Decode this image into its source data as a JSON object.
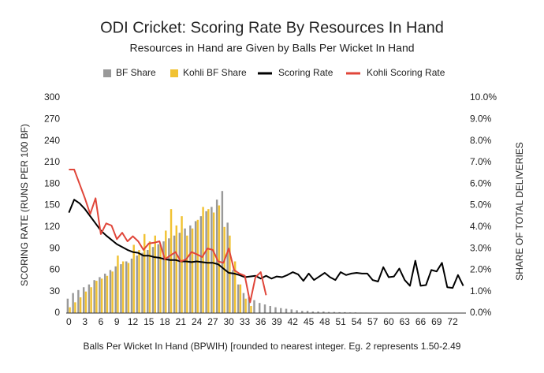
{
  "chart_data": {
    "type": "bar-line",
    "title": "ODI Cricket: Scoring Rate By Resources In Hand",
    "subtitle": "Resources in Hand are Given by Balls Per Wicket In Hand",
    "x_label": "Balls Per Wicket In Hand (BPWIH) [rounded to nearest integer. Eg. 2 represents 1.50-2.49",
    "y_label": "SCORING RATE (RUNS PER 100 BF)",
    "y2_label": "SHARE OF TOTAL DELIVERIES",
    "x": [
      0,
      1,
      2,
      3,
      4,
      5,
      6,
      7,
      8,
      9,
      10,
      11,
      12,
      13,
      14,
      15,
      16,
      17,
      18,
      19,
      20,
      21,
      22,
      23,
      24,
      25,
      26,
      27,
      28,
      29,
      30,
      31,
      32,
      33,
      34,
      35,
      36,
      37,
      38,
      39,
      40,
      41,
      42,
      43,
      44,
      45,
      46,
      47,
      48,
      49,
      50,
      51,
      52,
      53,
      54,
      55,
      56,
      57,
      58,
      59,
      60,
      61,
      62,
      63,
      64,
      65,
      66,
      67,
      68,
      69,
      70,
      71,
      72,
      73,
      74
    ],
    "xlim": [
      -0.5,
      74.5
    ],
    "xticks": [
      0,
      3,
      6,
      9,
      12,
      15,
      18,
      21,
      24,
      27,
      30,
      33,
      36,
      39,
      42,
      45,
      48,
      51,
      54,
      57,
      60,
      63,
      66,
      69,
      72
    ],
    "ylim": [
      0,
      300
    ],
    "yticks": [
      0,
      30,
      60,
      90,
      120,
      150,
      180,
      210,
      240,
      270,
      300
    ],
    "y2lim": [
      0,
      10
    ],
    "y2ticks": [
      {
        "value": 0,
        "label": "0.0%"
      },
      {
        "value": 1,
        "label": "1.0%"
      },
      {
        "value": 2,
        "label": "2.0%"
      },
      {
        "value": 3,
        "label": "3.0%"
      },
      {
        "value": 4,
        "label": "4.0%"
      },
      {
        "value": 5,
        "label": "5.0%"
      },
      {
        "value": 6,
        "label": "6.0%"
      },
      {
        "value": 7,
        "label": "7.0%"
      },
      {
        "value": 8,
        "label": "8.0%"
      },
      {
        "value": 9,
        "label": "9.0%"
      },
      {
        "value": 10,
        "label": "10.0%"
      }
    ],
    "grid": false,
    "legend": "top",
    "series": [
      {
        "name": "BF Share",
        "kind": "bar",
        "axis": "y2",
        "color": "#999999",
        "values": [
          0.67,
          0.93,
          1.07,
          1.2,
          1.33,
          1.53,
          1.67,
          1.83,
          2.0,
          2.17,
          2.27,
          2.4,
          2.53,
          2.67,
          2.8,
          2.93,
          3.07,
          3.2,
          3.33,
          3.47,
          3.6,
          3.73,
          3.93,
          4.07,
          4.27,
          4.5,
          4.73,
          4.93,
          5.27,
          5.67,
          4.2,
          2.0,
          1.33,
          0.93,
          0.73,
          0.6,
          0.47,
          0.4,
          0.33,
          0.27,
          0.23,
          0.2,
          0.17,
          0.13,
          0.1,
          0.1,
          0.07,
          0.07,
          0.07,
          0.05,
          0.05,
          0.04,
          0.04,
          0.03,
          0.03,
          0.02,
          0.02,
          0.02,
          null,
          null,
          null,
          null,
          null,
          null,
          null,
          null,
          null,
          null,
          null,
          null,
          null,
          null,
          null,
          null,
          null
        ]
      },
      {
        "name": "Kohli BF Share",
        "kind": "bar",
        "axis": "y2",
        "color": "#f1c232",
        "values": [
          0.27,
          0.5,
          0.73,
          1.0,
          1.2,
          1.5,
          1.6,
          1.73,
          1.93,
          2.67,
          2.4,
          2.33,
          3.17,
          2.93,
          3.67,
          3.33,
          3.6,
          3.17,
          3.83,
          4.83,
          4.07,
          4.5,
          3.6,
          3.93,
          4.33,
          4.93,
          4.83,
          4.67,
          5.0,
          4.0,
          3.6,
          2.4,
          1.33,
          0.67,
          0.33,
          null,
          null,
          null,
          null,
          null,
          null,
          null,
          null,
          null,
          null,
          null,
          null,
          null,
          null,
          null,
          null,
          null,
          null,
          null,
          null,
          null,
          null,
          null,
          null,
          null,
          null,
          null,
          null,
          null,
          null,
          null,
          null,
          null,
          null,
          null,
          null,
          null,
          null,
          null,
          null
        ]
      },
      {
        "name": "Scoring Rate",
        "kind": "line",
        "axis": "y",
        "color": "#000000",
        "values": [
          140,
          158,
          153,
          145,
          135,
          125,
          115,
          108,
          102,
          96,
          92,
          88,
          85,
          84,
          80,
          80,
          78,
          77,
          75,
          74,
          74,
          72,
          72,
          71,
          72,
          71,
          70,
          70,
          68,
          62,
          56,
          55,
          53,
          50,
          51,
          52,
          48,
          52,
          48,
          51,
          50,
          53,
          57,
          54,
          45,
          55,
          46,
          51,
          56,
          50,
          46,
          57,
          53,
          55,
          56,
          55,
          55,
          46,
          44,
          64,
          50,
          51,
          62,
          46,
          38,
          73,
          38,
          39,
          60,
          58,
          70,
          36,
          35,
          53,
          38
        ]
      },
      {
        "name": "Kohli Scoring Rate",
        "kind": "line",
        "axis": "y",
        "color": "#e0463a",
        "values": [
          200,
          200,
          180,
          160,
          138,
          160,
          110,
          125,
          122,
          103,
          112,
          100,
          107,
          100,
          88,
          97,
          98,
          100,
          75,
          80,
          85,
          72,
          75,
          85,
          82,
          78,
          90,
          88,
          72,
          70,
          90,
          60,
          55,
          52,
          15,
          50,
          57,
          25,
          null,
          null,
          null,
          null,
          null,
          null,
          null,
          null,
          null,
          null,
          null,
          null,
          null,
          null,
          null,
          null,
          null,
          null,
          null,
          null,
          null,
          null,
          null,
          null,
          null,
          null,
          null,
          null,
          null,
          null,
          null,
          null,
          null,
          null,
          null,
          null,
          null
        ]
      }
    ]
  }
}
